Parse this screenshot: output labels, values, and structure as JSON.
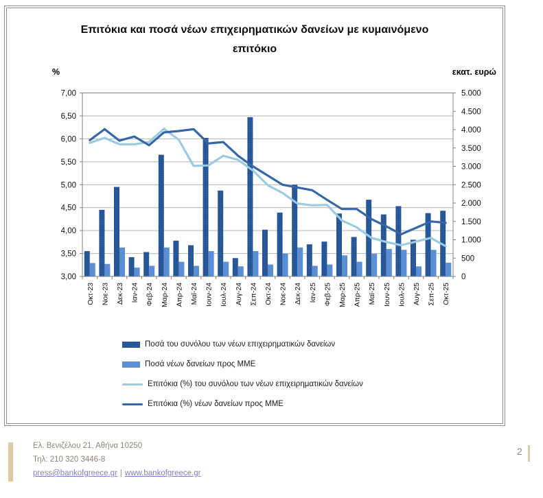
{
  "chart_card": {
    "title": "Επιτόκια και ποσά νέων επιχειρηματικών δανείων με κυμαινόμενο επιτόκιο"
  },
  "chart_data": {
    "type": "combo",
    "title": "Επιτόκια και ποσά νέων επιχειρηματικών δανείων με κυμαινόμενο επιτόκιο",
    "categories": [
      "Οκτ-23",
      "Νοε-23",
      "Δεκ-23",
      "Ιαν-24",
      "Φεβ-24",
      "Μαρ-24",
      "Απρ-24",
      "Μαϊ-24",
      "Ιουν-24",
      "Ιουλ-24",
      "Αυγ-24",
      "Σεπ-24",
      "Οκτ-24",
      "Νοε-24",
      "Δεκ-24",
      "Ιαν-25",
      "Φεβ-25",
      "Μαρ-25",
      "Απρ-25",
      "Μαϊ-25",
      "Ιουν-25",
      "Ιουλ-25",
      "Αυγ-25",
      "Σεπ-25",
      "Οκτ-25"
    ],
    "series": [
      {
        "name": "Ποσά του συνόλου των νέων επιχειρηματικών δανείων",
        "kind": "bar",
        "axis": "right",
        "color": "#2A5A9C",
        "values": [
          690,
          1815,
          2440,
          525,
          665,
          3315,
          975,
          850,
          3775,
          2340,
          500,
          4340,
          1275,
          1740,
          2500,
          875,
          950,
          1715,
          1075,
          2090,
          1690,
          1915,
          1000,
          1725,
          1790
        ]
      },
      {
        "name": "Ποσά νέων δανείων προς ΜΜΕ",
        "kind": "bar",
        "axis": "right",
        "color": "#5B8FD5",
        "values": [
          365,
          340,
          790,
          240,
          290,
          790,
          400,
          290,
          690,
          400,
          275,
          690,
          325,
          625,
          790,
          290,
          325,
          575,
          400,
          615,
          750,
          725,
          275,
          725,
          375
        ]
      },
      {
        "name": "Επιτόκια (%) του συνόλου των νέων επιχειρηματικών δανείων",
        "kind": "line",
        "axis": "left",
        "color": "#9CCADF",
        "values": [
          5.91,
          6.02,
          5.88,
          5.88,
          5.93,
          6.22,
          5.98,
          5.41,
          5.42,
          5.63,
          5.54,
          5.31,
          4.99,
          4.82,
          4.59,
          4.55,
          4.56,
          4.22,
          4.07,
          3.84,
          3.75,
          3.68,
          3.76,
          3.84,
          3.66
        ]
      },
      {
        "name": "Επιτόκια (%) νέων δανείων προς ΜΜΕ",
        "kind": "line",
        "axis": "left",
        "color": "#3566A5",
        "values": [
          5.97,
          6.21,
          5.96,
          6.05,
          5.86,
          6.14,
          6.17,
          6.21,
          5.9,
          5.93,
          5.63,
          5.4,
          5.2,
          5.0,
          4.94,
          4.88,
          4.67,
          4.47,
          4.47,
          4.25,
          4.09,
          3.92,
          4.06,
          4.2,
          4.17
        ]
      }
    ],
    "left_axis": {
      "label": "%",
      "min": 3,
      "max": 7,
      "tick_labels": [
        "7,00",
        "6,50",
        "6,00",
        "5,50",
        "5,00",
        "4,50",
        "4,00",
        "3,50",
        "3,00"
      ],
      "tick_values": [
        7,
        6.5,
        6,
        5.5,
        5,
        4.5,
        4,
        3.5,
        3
      ]
    },
    "right_axis": {
      "label": "εκατ. ευρώ",
      "min": 0,
      "max": 5000,
      "tick_labels": [
        "5.000",
        "4.500",
        "4.000",
        "3.500",
        "3.000",
        "2.500",
        "2.000",
        "1.500",
        "1.000",
        "500",
        "0"
      ],
      "tick_values": [
        5000,
        4500,
        4000,
        3500,
        3000,
        2500,
        2000,
        1500,
        1000,
        500,
        0
      ]
    },
    "grid": true,
    "grid_color": "#b2b2b2",
    "axis_color": "#808080",
    "legend_position": "bottom-left"
  },
  "footer": {
    "address": "Ελ. Βενιζέλου 21, Αθήνα 10250",
    "phone": "Τηλ: 210 320 3446-8",
    "email": "press@bankofgreece.gr",
    "separator": "|",
    "website": "www.bankofgreece.gr",
    "page_number": "2",
    "accent_color": "#dccba4"
  }
}
